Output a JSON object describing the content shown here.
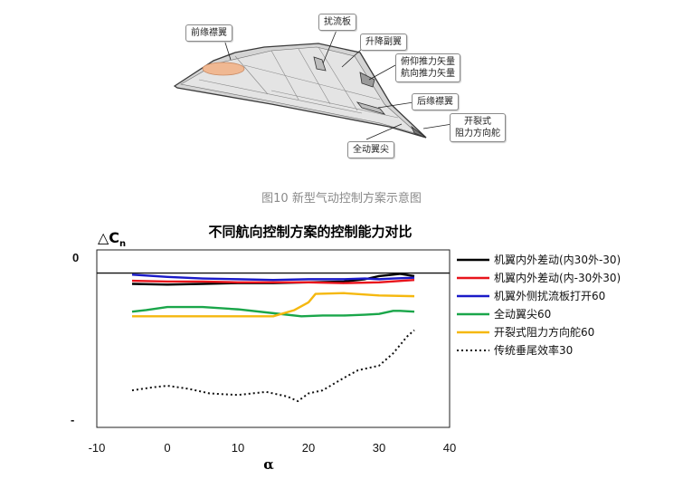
{
  "figure_caption": "图10 新型气动控制方案示意图",
  "diagram_labels": {
    "leading_edge_flap": "前缘襟翼",
    "spoiler": "扰流板",
    "elevon": "升降副翼",
    "thrust_vector": "俯仰推力矢量\n航向推力矢量",
    "trailing_edge_flap": "后缘襟翼",
    "split_drag_rudder": "开裂式\n阻力方向舵",
    "all_moving_tip": "全动翼尖"
  },
  "chart_data": {
    "type": "line",
    "title": "不同航向控制方案的控制能力对比",
    "xlabel": "α",
    "ylabel": "△Cn",
    "xlim": [
      -10,
      40
    ],
    "x_ticks": [
      "-10",
      "0",
      "10",
      "20",
      "30",
      "40"
    ],
    "y_tick_labels": [
      "0",
      "-"
    ],
    "ylim": [
      -1.0,
      0.15
    ],
    "grid": false,
    "legend_position": "right",
    "series": [
      {
        "name": "机翼内外差动(内30外-30)",
        "color": "#000000",
        "style": "solid",
        "x": [
          -5,
          0,
          5,
          10,
          15,
          20,
          25,
          28,
          30,
          32,
          33,
          35
        ],
        "y": [
          -0.07,
          -0.075,
          -0.07,
          -0.065,
          -0.065,
          -0.06,
          -0.055,
          -0.04,
          -0.02,
          -0.01,
          -0.005,
          -0.02
        ]
      },
      {
        "name": "机翼内外差动(内-30外30)",
        "color": "#e8141c",
        "style": "solid",
        "x": [
          -5,
          0,
          5,
          10,
          15,
          20,
          25,
          30,
          35
        ],
        "y": [
          -0.05,
          -0.055,
          -0.055,
          -0.06,
          -0.06,
          -0.06,
          -0.065,
          -0.06,
          -0.045
        ]
      },
      {
        "name": "机翼外侧扰流板打开60",
        "color": "#1a1ac8",
        "style": "solid",
        "x": [
          -5,
          0,
          5,
          10,
          15,
          20,
          25,
          28,
          30,
          32,
          35
        ],
        "y": [
          -0.01,
          -0.025,
          -0.035,
          -0.04,
          -0.045,
          -0.04,
          -0.04,
          -0.035,
          -0.04,
          -0.035,
          -0.03
        ]
      },
      {
        "name": "全动翼尖60",
        "color": "#1aa64a",
        "style": "solid",
        "x": [
          -5,
          -3,
          0,
          5,
          10,
          15,
          19,
          22,
          25,
          28,
          30,
          32,
          33,
          35
        ],
        "y": [
          -0.25,
          -0.24,
          -0.22,
          -0.22,
          -0.235,
          -0.26,
          -0.28,
          -0.275,
          -0.275,
          -0.27,
          -0.265,
          -0.245,
          -0.245,
          -0.25
        ]
      },
      {
        "name": "开裂式阻力方向舵60",
        "color": "#f5b80f",
        "style": "solid",
        "x": [
          -5,
          0,
          5,
          10,
          15,
          18,
          20,
          21,
          25,
          30,
          35
        ],
        "y": [
          -0.28,
          -0.28,
          -0.28,
          -0.28,
          -0.28,
          -0.24,
          -0.19,
          -0.135,
          -0.13,
          -0.145,
          -0.15
        ]
      },
      {
        "name": "传统垂尾效率30",
        "color": "#111111",
        "style": "dotted",
        "x": [
          -5,
          -2,
          0,
          3,
          6,
          10,
          14,
          17,
          18.5,
          20,
          22,
          25,
          27,
          30,
          32,
          34,
          35
        ],
        "y": [
          -0.76,
          -0.74,
          -0.73,
          -0.75,
          -0.78,
          -0.79,
          -0.77,
          -0.8,
          -0.83,
          -0.78,
          -0.76,
          -0.68,
          -0.63,
          -0.6,
          -0.52,
          -0.41,
          -0.37
        ]
      }
    ]
  }
}
